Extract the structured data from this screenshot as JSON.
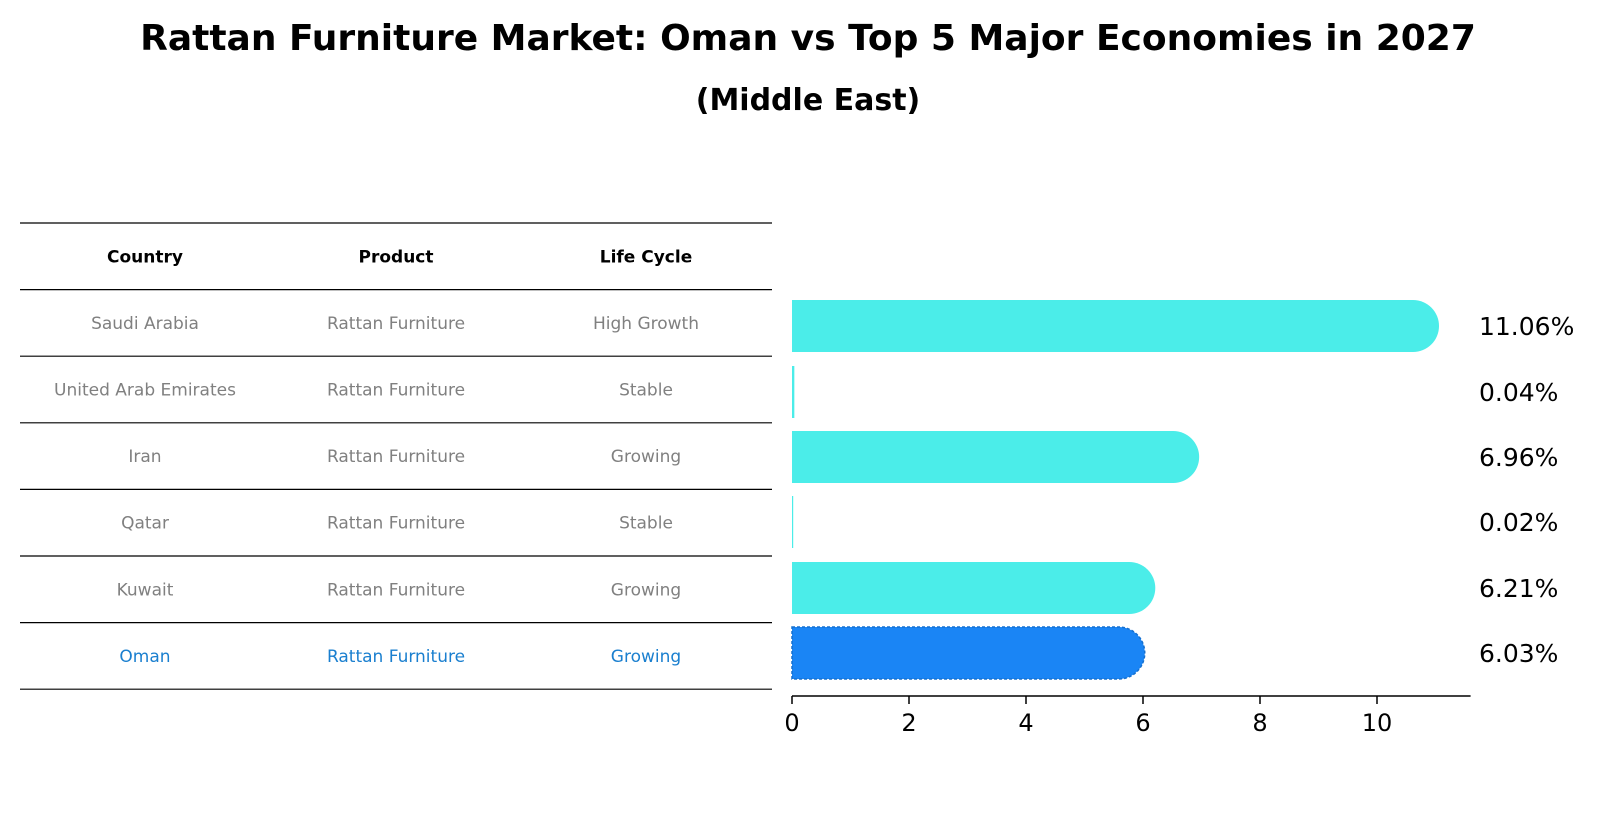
{
  "chart_data": {
    "type": "bar",
    "orientation": "horizontal",
    "title": "Rattan Furniture Market: Oman vs Top 5 Major Economies in 2027",
    "subtitle": "(Middle East)",
    "table": {
      "headers": [
        "Country",
        "Product",
        "Life Cycle"
      ],
      "rows": [
        [
          "Saudi Arabia",
          "Rattan Furniture",
          "High Growth"
        ],
        [
          "United Arab Emirates",
          "Rattan Furniture",
          "Stable"
        ],
        [
          "Iran",
          "Rattan Furniture",
          "Growing"
        ],
        [
          "Qatar",
          "Rattan Furniture",
          "Stable"
        ],
        [
          "Kuwait",
          "Rattan Furniture",
          "Growing"
        ],
        [
          "Oman",
          "Rattan Furniture",
          "Growing"
        ]
      ],
      "highlight_row": 5
    },
    "categories": [
      "Saudi Arabia",
      "United Arab Emirates",
      "Iran",
      "Qatar",
      "Kuwait",
      "Oman"
    ],
    "values": [
      11.06,
      0.04,
      6.96,
      0.02,
      6.21,
      6.03
    ],
    "value_labels": [
      "11.06%",
      "0.04%",
      "6.96%",
      "0.02%",
      "6.21%",
      "6.03%"
    ],
    "xlim": [
      0,
      11.6
    ],
    "xticks": [
      0,
      2,
      4,
      6,
      8,
      10
    ],
    "xtick_labels": [
      "0",
      "2",
      "4",
      "6",
      "8",
      "10"
    ],
    "grid": false,
    "colors": {
      "bar": "#4bede9",
      "highlight_bar": "#1a85f5",
      "table_text": "#808080",
      "highlight_text": "#1a7fcf",
      "rule": "#000000"
    }
  }
}
